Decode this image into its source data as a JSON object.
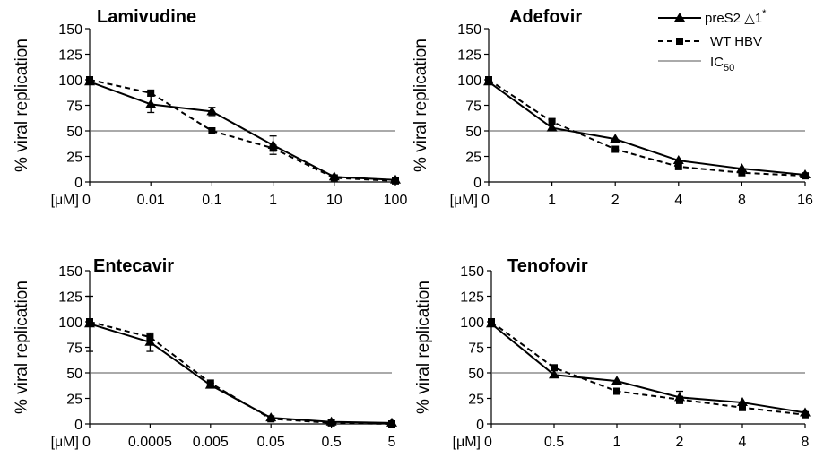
{
  "legend": {
    "items": [
      {
        "label": "preS2 △1",
        "sup": "*",
        "style": "solid",
        "marker": "triangle"
      },
      {
        "label": "WT HBV",
        "sup": "",
        "style": "dashed",
        "marker": "square"
      },
      {
        "label": "IC",
        "sub": "50",
        "style": "thin",
        "marker": "none"
      }
    ]
  },
  "chart_data": [
    {
      "type": "line",
      "title": "Lamivudine",
      "ylabel": "% viral replication",
      "xunit": "[μM]",
      "yticks": [
        "0",
        "25",
        "50",
        "75",
        "100",
        "125",
        "150"
      ],
      "ylim": [
        0,
        150
      ],
      "categories": [
        "0",
        "0.01",
        "0.1",
        "1",
        "10",
        "100"
      ],
      "reference_line": 50,
      "series": [
        {
          "name": "preS2 △1*",
          "values": [
            98,
            76,
            69,
            36,
            5,
            2
          ],
          "err": [
            0,
            8,
            4,
            9,
            1,
            0
          ]
        },
        {
          "name": "WT HBV",
          "values": [
            100,
            87,
            50,
            33,
            4,
            1
          ],
          "err": [
            0,
            0,
            0,
            0,
            0,
            0
          ]
        }
      ]
    },
    {
      "type": "line",
      "title": "Adefovir",
      "ylabel": "% viral replication",
      "xunit": "[μM]",
      "yticks": [
        "0",
        "25",
        "50",
        "75",
        "100",
        "125",
        "150"
      ],
      "ylim": [
        0,
        150
      ],
      "categories": [
        "0",
        "1",
        "2",
        "4",
        "8",
        "16"
      ],
      "reference_line": 50,
      "series": [
        {
          "name": "preS2 △1*",
          "values": [
            98,
            53,
            42,
            21,
            13,
            7
          ],
          "err": [
            0,
            0,
            0,
            0,
            0,
            0
          ]
        },
        {
          "name": "WT HBV",
          "values": [
            100,
            59,
            32,
            15,
            9,
            6
          ],
          "err": [
            0,
            3,
            0,
            0,
            0,
            0
          ]
        }
      ]
    },
    {
      "type": "line",
      "title": "Entecavir",
      "ylabel": "% viral replication",
      "xunit": "[μM]",
      "yticks": [
        "0",
        "25",
        "50",
        "75",
        "100",
        "125",
        "150"
      ],
      "ylim": [
        0,
        150
      ],
      "categories": [
        "0",
        "0.0005",
        "0.005",
        "0.05",
        "0.5",
        "5"
      ],
      "reference_line": 50,
      "series": [
        {
          "name": "preS2 △1*",
          "values": [
            98,
            80,
            38,
            6,
            2,
            1
          ],
          "err": [
            27,
            9,
            2,
            0,
            0,
            0
          ]
        },
        {
          "name": "WT HBV",
          "values": [
            100,
            85,
            40,
            5,
            1,
            0
          ],
          "err": [
            0,
            0,
            0,
            0,
            0,
            0
          ]
        }
      ]
    },
    {
      "type": "line",
      "title": "Tenofovir",
      "ylabel": "% viral replication",
      "xunit": "[μM]",
      "yticks": [
        "0",
        "25",
        "50",
        "75",
        "100",
        "125",
        "150"
      ],
      "ylim": [
        0,
        150
      ],
      "categories": [
        "0",
        "0.5",
        "1",
        "2",
        "4",
        "8"
      ],
      "reference_line": 50,
      "series": [
        {
          "name": "preS2 △1*",
          "values": [
            98,
            48,
            42,
            26,
            21,
            11
          ],
          "err": [
            0,
            0,
            0,
            6,
            0,
            0
          ]
        },
        {
          "name": "WT HBV",
          "values": [
            100,
            55,
            32,
            24,
            16,
            9
          ],
          "err": [
            0,
            0,
            0,
            0,
            0,
            0
          ]
        }
      ]
    }
  ]
}
